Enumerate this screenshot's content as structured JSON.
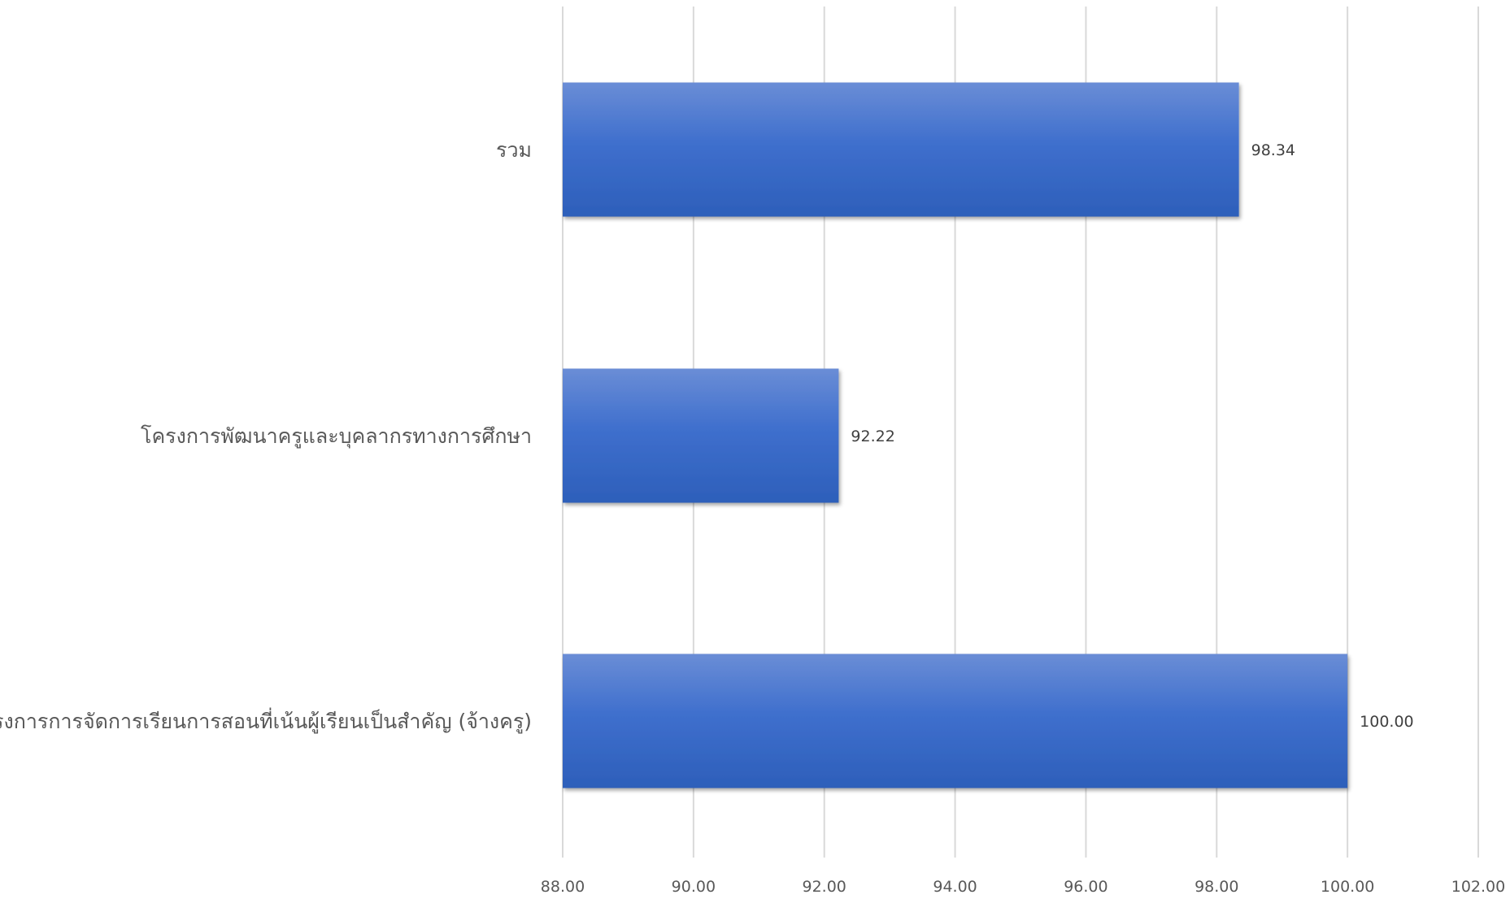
{
  "chart_data": {
    "type": "bar",
    "orientation": "horizontal",
    "categories": [
      "รวม",
      "โครงการพัฒนาครูและบุคลากรทางการศึกษา",
      "โครงการการจัดการเรียนการสอนที่เน้นผู้เรียนเป็นสำคัญ (จ้างครู)"
    ],
    "values": [
      98.34,
      92.22,
      100.0
    ],
    "data_labels": [
      "98.34",
      "92.22",
      "100.00"
    ],
    "xlim": [
      88,
      102
    ],
    "x_ticks": [
      "88.00",
      "90.00",
      "92.00",
      "94.00",
      "96.00",
      "98.00",
      "100.00",
      "102.00"
    ],
    "grid": true,
    "legend": "none",
    "bar_color": "#4472c4"
  }
}
